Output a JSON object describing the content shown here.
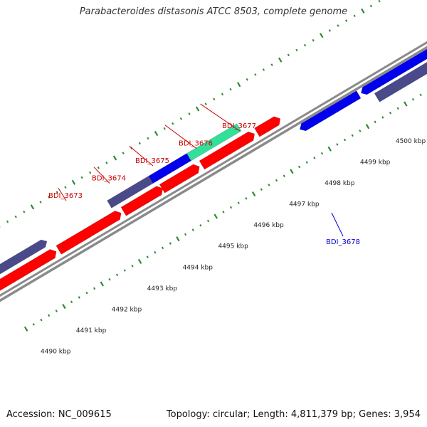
{
  "title": "Parabacteroides distasonis ATCC 8503, complete genome",
  "footer": {
    "accession": "Accession: NC_009615",
    "summary": "Topology: circular; Length: 4,811,379 bp; Genes: 3,954"
  },
  "colors": {
    "backbone": "#8a8a8a",
    "tick": "#2e8b2e",
    "forward_cds": "#ff0000",
    "reverse_cds": "#0000ee",
    "forward_dark": "#4a4a8a",
    "highlight": "#33e09a",
    "label_forward": "#cc0000",
    "label_reverse": "#0000cc"
  },
  "scale_labels": [
    {
      "kbp": 4490,
      "text": "4490 kbp"
    },
    {
      "kbp": 4491,
      "text": "4491 kbp"
    },
    {
      "kbp": 4492,
      "text": "4492 kbp"
    },
    {
      "kbp": 4493,
      "text": "4493 kbp"
    },
    {
      "kbp": 4494,
      "text": "4494 kbp"
    },
    {
      "kbp": 4495,
      "text": "4495 kbp"
    },
    {
      "kbp": 4496,
      "text": "4496 kbp"
    },
    {
      "kbp": 4497,
      "text": "4497 kbp"
    },
    {
      "kbp": 4498,
      "text": "4498 kbp"
    },
    {
      "kbp": 4499,
      "text": "4499 kbp"
    },
    {
      "kbp": 4500,
      "text": "4500 kbp"
    }
  ],
  "genes": [
    {
      "name": "BDI_3673",
      "strand": "forward"
    },
    {
      "name": "BDI_3674",
      "strand": "forward"
    },
    {
      "name": "BDI_3675",
      "strand": "forward"
    },
    {
      "name": "BDI_3676",
      "strand": "forward"
    },
    {
      "name": "BDI_3677",
      "strand": "forward"
    },
    {
      "name": "BDI_3678",
      "strand": "reverse"
    }
  ]
}
